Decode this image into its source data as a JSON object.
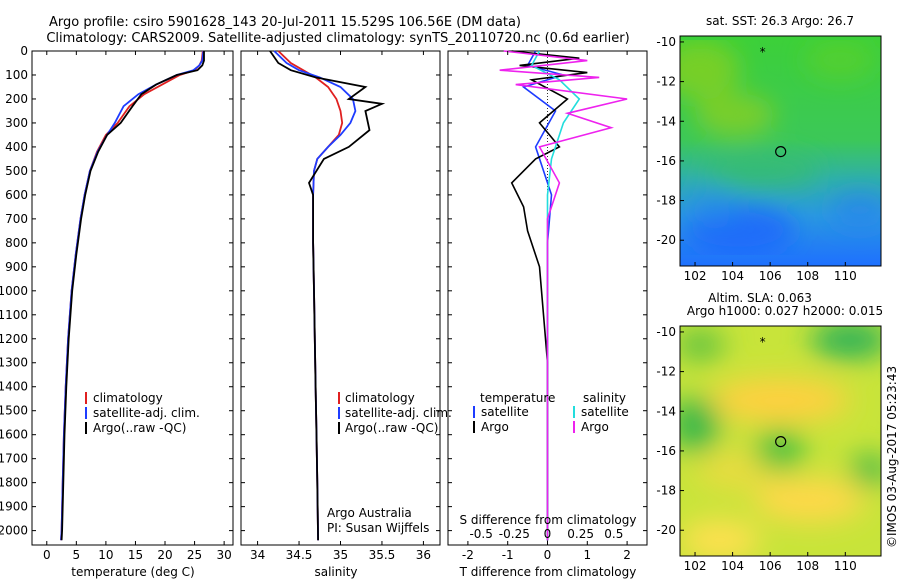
{
  "titles": {
    "line1": "Argo profile: csiro 5901628_143 20-Jul-2011 15.529S 106.56E (DM data)",
    "line2": "Climatology: CARS2009. Satellite-adjusted climatology: synTS_20110720.nc (0.6d earlier)"
  },
  "colors": {
    "clim": "#e02020",
    "sat": "#1e3cff",
    "argo": "#000000",
    "sat_s": "#22dddd",
    "argo_s": "#ee22ee"
  },
  "chart_data": [
    {
      "type": "line",
      "name": "temperature-profile",
      "xlabel": "temperature (deg C)",
      "xlim": [
        -2.5,
        31.5
      ],
      "ylim": [
        0,
        2060
      ],
      "xticks": [
        0,
        5,
        10,
        15,
        20,
        25,
        30
      ],
      "yticks": [
        0,
        100,
        200,
        300,
        400,
        500,
        600,
        700,
        800,
        900,
        1000,
        1100,
        1200,
        1300,
        1400,
        1500,
        1600,
        1700,
        1800,
        1900,
        2000
      ],
      "legend": [
        "climatology",
        "satellite-adj. clim.",
        "Argo(..raw -QC)"
      ],
      "series": [
        {
          "name": "climatology",
          "color": "clim",
          "x": [
            26.4,
            26.2,
            25.8,
            25.0,
            22.5,
            19.5,
            16.5,
            14.0,
            12.0,
            10.0,
            8.5,
            7.3,
            6.4,
            5.7,
            4.9,
            4.2,
            3.6,
            3.2,
            2.9,
            2.7,
            2.5,
            2.4
          ],
          "y": [
            0,
            40,
            60,
            80,
            100,
            140,
            180,
            230,
            300,
            350,
            420,
            500,
            600,
            700,
            850,
            1000,
            1200,
            1400,
            1600,
            1800,
            2000,
            2040
          ]
        },
        {
          "name": "satellite-adj. clim.",
          "color": "sat",
          "x": [
            26.5,
            26.3,
            25.8,
            24.8,
            22.0,
            18.5,
            15.5,
            13.0,
            11.5,
            10.2,
            8.6,
            7.3,
            6.4,
            5.7,
            4.9,
            4.2,
            3.6,
            3.2,
            2.9,
            2.7,
            2.5,
            2.4
          ],
          "y": [
            0,
            40,
            60,
            80,
            100,
            140,
            180,
            230,
            300,
            350,
            420,
            500,
            600,
            700,
            850,
            1000,
            1200,
            1400,
            1600,
            1800,
            2000,
            2040
          ]
        },
        {
          "name": "Argo",
          "color": "argo",
          "x": [
            26.6,
            26.6,
            26.3,
            25.5,
            22.0,
            18.5,
            16.0,
            14.5,
            12.5,
            10.2,
            8.7,
            7.4,
            6.5,
            5.8,
            5.0,
            4.3,
            3.7,
            3.3,
            3.0,
            2.8,
            2.6,
            2.5
          ],
          "y": [
            0,
            40,
            60,
            80,
            100,
            140,
            180,
            230,
            300,
            350,
            420,
            500,
            600,
            700,
            850,
            1000,
            1200,
            1400,
            1600,
            1800,
            2000,
            2040
          ]
        }
      ]
    },
    {
      "type": "line",
      "name": "salinity-profile",
      "xlabel": "salinity",
      "xlim": [
        33.8,
        36.2
      ],
      "ylim": [
        0,
        2060
      ],
      "xticks": [
        34,
        34.5,
        35,
        35.5,
        36
      ],
      "legend": [
        "climatology",
        "satellite-adj. clim.",
        "Argo(..raw -QC)"
      ],
      "notes": [
        "Argo Australia",
        "PI: Susan Wijffels"
      ],
      "series": [
        {
          "name": "climatology",
          "color": "clim",
          "x": [
            34.25,
            34.4,
            34.55,
            34.7,
            34.85,
            34.95,
            35.0,
            35.02,
            34.98,
            34.85,
            34.72,
            34.68,
            34.67,
            34.67,
            34.68,
            34.69,
            34.7,
            34.71,
            34.72,
            34.73
          ],
          "y": [
            0,
            50,
            80,
            110,
            150,
            200,
            250,
            300,
            350,
            400,
            450,
            500,
            600,
            800,
            1000,
            1200,
            1400,
            1600,
            1800,
            2040
          ]
        },
        {
          "name": "satellite-adj. clim.",
          "color": "sat",
          "x": [
            34.2,
            34.35,
            34.5,
            34.75,
            35.0,
            35.15,
            35.18,
            35.12,
            35.0,
            34.85,
            34.72,
            34.68,
            34.67,
            34.67,
            34.68,
            34.69,
            34.7,
            34.71,
            34.72,
            34.73
          ],
          "y": [
            0,
            50,
            80,
            110,
            150,
            200,
            250,
            300,
            350,
            400,
            450,
            500,
            600,
            800,
            1000,
            1200,
            1400,
            1600,
            1800,
            2040
          ]
        },
        {
          "name": "Argo",
          "color": "argo",
          "x": [
            34.15,
            34.25,
            34.4,
            34.7,
            35.3,
            35.1,
            35.5,
            35.3,
            35.35,
            35.1,
            34.8,
            34.62,
            34.67,
            34.67,
            34.68,
            34.69,
            34.7,
            34.71,
            34.72,
            34.73
          ],
          "y": [
            0,
            50,
            80,
            110,
            150,
            200,
            220,
            250,
            330,
            400,
            450,
            550,
            600,
            800,
            1000,
            1200,
            1400,
            1600,
            1800,
            2040
          ]
        }
      ]
    },
    {
      "type": "line",
      "name": "difference-profile",
      "xlabel": "T difference from climatology",
      "xlabel_top": "S difference from climatology",
      "xlim": [
        -2.5,
        2.5
      ],
      "ylim": [
        0,
        2060
      ],
      "xticks": [
        -2,
        -1,
        0,
        1,
        2
      ],
      "xtick_labels_top": [
        "-0.5",
        "-0.25",
        "0",
        "0.25",
        "0.5"
      ],
      "legend_titles": [
        "temperature",
        "salinity"
      ],
      "legend": [
        "satellite",
        "Argo",
        "satellite",
        "Argo"
      ],
      "series": [
        {
          "name": "temperature satellite",
          "color": "sat",
          "x": [
            -0.3,
            -0.5,
            0.4,
            -0.6,
            0.2,
            -0.3,
            0.1,
            0.0,
            0.0,
            0.0,
            0.0
          ],
          "y": [
            0,
            60,
            100,
            150,
            250,
            400,
            600,
            800,
            1200,
            1600,
            2040
          ]
        },
        {
          "name": "temperature Argo",
          "color": "argo",
          "x": [
            -0.9,
            0.8,
            -0.7,
            1.0,
            -0.4,
            0.5,
            -0.2,
            0.3,
            -0.3,
            -0.9,
            -0.6,
            -0.5,
            -0.2,
            0.0,
            0.0,
            0.0
          ],
          "y": [
            0,
            30,
            60,
            90,
            120,
            200,
            300,
            400,
            450,
            550,
            650,
            750,
            900,
            1300,
            1700,
            2040
          ]
        },
        {
          "name": "salinity satellite",
          "color": "sat_s",
          "x": [
            -0.2,
            -0.4,
            0.3,
            0.8,
            0.4,
            0.1,
            0.0,
            0.0,
            0.0,
            0.0
          ],
          "y": [
            0,
            60,
            120,
            200,
            300,
            450,
            600,
            900,
            1400,
            2040
          ]
        },
        {
          "name": "salinity Argo",
          "color": "argo_s",
          "x": [
            -1.1,
            1.0,
            -1.2,
            1.3,
            -0.8,
            2.0,
            0.5,
            1.6,
            -0.2,
            0.3,
            0.0,
            0.0,
            0.0
          ],
          "y": [
            0,
            40,
            80,
            110,
            140,
            200,
            260,
            320,
            400,
            550,
            700,
            1200,
            2040
          ]
        }
      ]
    },
    {
      "type": "heatmap",
      "name": "sst-map",
      "title": "sat. SST: 26.3  Argo: 26.7",
      "xlim": [
        101.2,
        111.9
      ],
      "ylim": [
        -21.3,
        -9.7
      ],
      "xticks": [
        102,
        104,
        106,
        108,
        110
      ],
      "yticks": [
        -10,
        -12,
        -14,
        -16,
        -18,
        -20
      ]
    },
    {
      "type": "heatmap",
      "name": "sla-map",
      "title1": "Altim. SLA: 0.063",
      "title2": "Argo h1000: 0.027 h2000: 0.015",
      "xlim": [
        101.2,
        111.9
      ],
      "ylim": [
        -21.3,
        -9.7
      ],
      "xticks": [
        102,
        104,
        106,
        108,
        110
      ],
      "yticks": [
        -10,
        -12,
        -14,
        -16,
        -18,
        -20
      ]
    }
  ],
  "float_position": {
    "lon": 106.56,
    "lat": -15.53
  },
  "prev_position": {
    "lon": 105.6,
    "lat": -10.5
  },
  "stamp": "©IMOS 03-Aug-2017 05:23:43"
}
